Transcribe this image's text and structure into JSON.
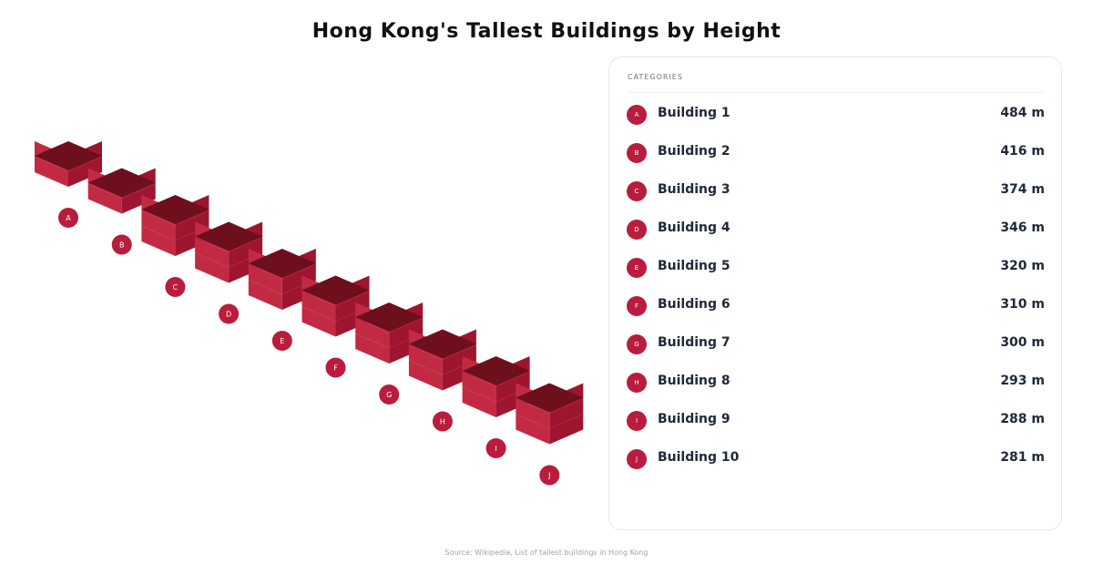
{
  "title": "Hong Kong's Tallest Buildings by Height",
  "panel": {
    "header": "CATEGORIES"
  },
  "footer": "Source: Wikipedia, List of tallest buildings in Hong Kong",
  "colors": {
    "top": "#6e0f1d",
    "left": "#c22a44",
    "right": "#9e1530",
    "badge": "#b91c3c"
  },
  "chart_data": {
    "type": "bar",
    "categories": [
      "A",
      "B",
      "C",
      "D",
      "E",
      "F",
      "G",
      "H",
      "I",
      "J"
    ],
    "items": [
      {
        "badge": "A",
        "name": "Building 1",
        "sub": "",
        "value": "484 m",
        "layers": 2
      },
      {
        "badge": "B",
        "name": "Building 2",
        "sub": "",
        "value": "416 m",
        "layers": 2
      },
      {
        "badge": "C",
        "name": "Building 3",
        "sub": "",
        "value": "374 m",
        "layers": 3
      },
      {
        "badge": "D",
        "name": "Building 4",
        "sub": "",
        "value": "346 m",
        "layers": 3
      },
      {
        "badge": "E",
        "name": "Building 5",
        "sub": "",
        "value": "320 m",
        "layers": 3
      },
      {
        "badge": "F",
        "name": "Building 6",
        "sub": "",
        "value": "310 m",
        "layers": 3
      },
      {
        "badge": "G",
        "name": "Building 7",
        "sub": "",
        "value": "300 m",
        "layers": 3
      },
      {
        "badge": "H",
        "name": "Building 8",
        "sub": "",
        "value": "293 m",
        "layers": 3
      },
      {
        "badge": "I",
        "name": "Building 9",
        "sub": "",
        "value": "288 m",
        "layers": 3
      },
      {
        "badge": "J",
        "name": "Building 10",
        "sub": "",
        "value": "281 m",
        "layers": 3
      }
    ]
  }
}
